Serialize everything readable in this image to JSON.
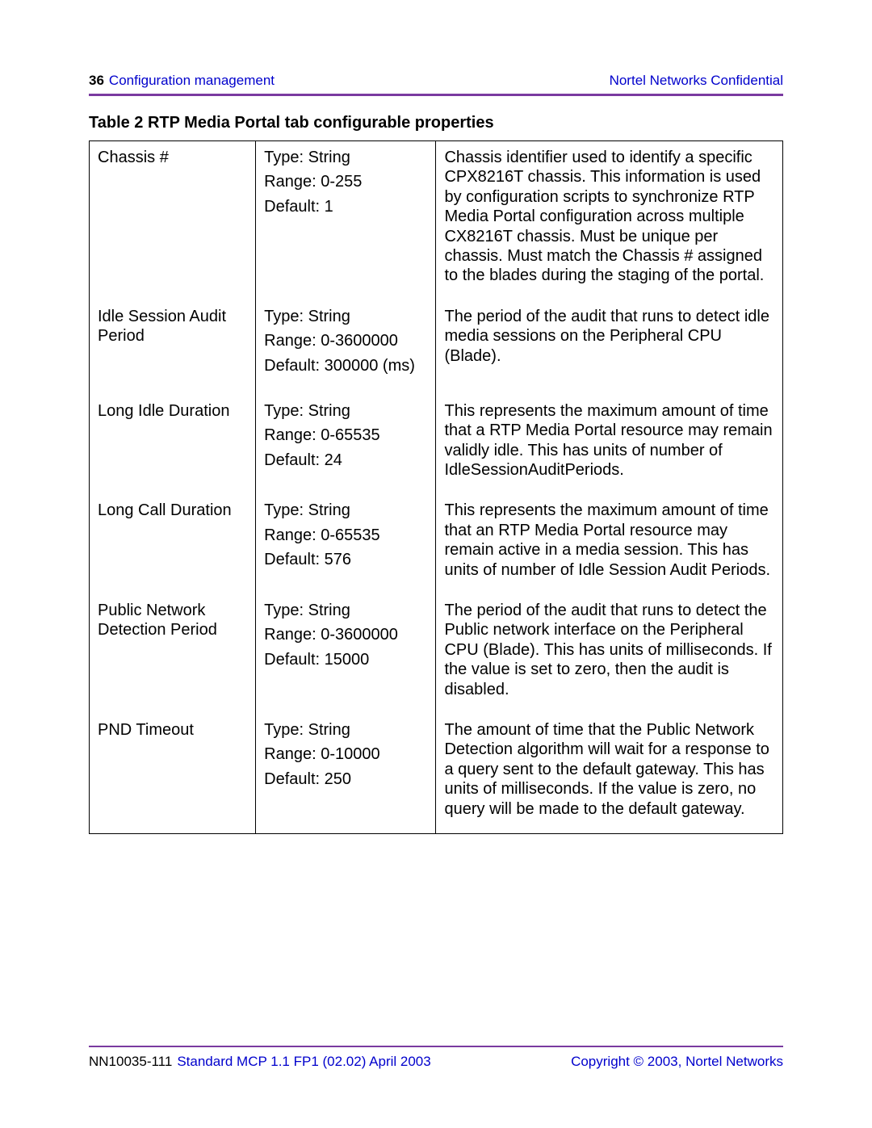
{
  "header": {
    "page_number": "36",
    "section": "Configuration management",
    "confidential": "Nortel Networks Confidential"
  },
  "divider_color": "#7a3aa0",
  "link_color": "#0000cc",
  "text_color": "#000000",
  "table": {
    "title": "Table 2  RTP Media Portal tab configurable properties",
    "rows": [
      {
        "name": "Chassis #",
        "type": "Type: String",
        "range": "Range: 0-255",
        "default": "Default: 1",
        "desc": "Chassis identifier used to identify a specific CPX8216T chassis. This information is used by configuration scripts to synchronize RTP Media Portal configuration across multiple CX8216T chassis. Must be unique per chassis. Must match the Chassis # assigned to the blades during the staging of the portal."
      },
      {
        "name": "Idle Session Audit Period",
        "type": "Type: String",
        "range": "Range: 0-3600000",
        "default": "Default: 300000 (ms)",
        "desc": "The period of the audit that runs to detect idle media sessions on the Peripheral CPU (Blade)."
      },
      {
        "name": "Long Idle Duration",
        "type": "Type: String",
        "range": "Range: 0-65535",
        "default": "Default: 24",
        "desc": "This represents the maximum amount of time that a RTP Media Portal resource may remain validly idle. This has units of number of IdleSessionAuditPeriods."
      },
      {
        "name": "Long Call Duration",
        "type": "Type: String",
        "range": "Range: 0-65535",
        "default": "Default: 576",
        "desc": "This represents the maximum amount of time that an RTP Media Portal resource may remain active in a media session. This has units of number of Idle Session Audit Periods."
      },
      {
        "name": "Public Network Detection Period",
        "type": "Type: String",
        "range": "Range: 0-3600000",
        "default": "Default: 15000",
        "desc": "The period of the audit that runs to detect the Public network interface on the Peripheral CPU (Blade). This has units of milliseconds. If the value is set to zero, then the audit is disabled."
      },
      {
        "name": "PND Timeout",
        "type": "Type: String",
        "range": "Range: 0-10000",
        "default": "Default: 250",
        "desc": "The amount of time that the Public Network Detection algorithm will wait for a response to a query sent to the default gateway. This has units of milliseconds. If the value is zero, no query will be made to the default gateway."
      }
    ]
  },
  "footer": {
    "doc_id": "NN10035-111",
    "release": "Standard   MCP 1.1 FP1 (02.02)   April 2003",
    "copyright": "Copyright © 2003, Nortel Networks"
  }
}
